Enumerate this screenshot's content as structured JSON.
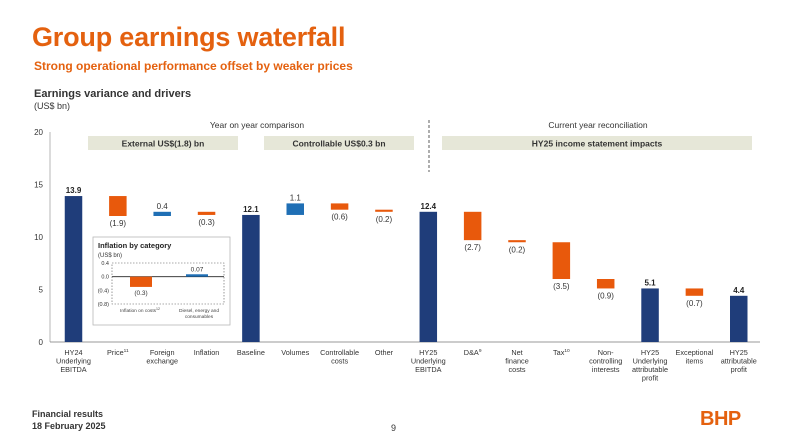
{
  "title": "Group earnings waterfall",
  "subtitle": "Strong operational performance offset by weaker prices",
  "footer": {
    "line1": "Financial results",
    "line2": "18 February 2025",
    "page": "9",
    "logo": "BHP"
  },
  "colors": {
    "accent": "#e4610f",
    "total": "#1f3d7a",
    "increase": "#1f6fb5",
    "decrease": "#e8590c",
    "band": "#e6e7d8"
  },
  "chart_data": {
    "type": "bar",
    "subtype": "waterfall",
    "title": "Earnings variance and drivers",
    "ylabel": "(US$ bn)",
    "ylim": [
      0,
      20
    ],
    "yticks": [
      "0",
      "5",
      "10",
      "15",
      "20"
    ],
    "sections": [
      {
        "label": "Year on year comparison"
      },
      {
        "label": "Current year reconciliation"
      }
    ],
    "bands": [
      {
        "label": "External US$(1.8) bn"
      },
      {
        "label": "Controllable US$0.3 bn"
      },
      {
        "label": "HY25 income statement impacts"
      }
    ],
    "bars": [
      {
        "category": "HY24 Underlying EBITDA",
        "lines": [
          "HY24",
          "Underlying",
          "EBITDA"
        ],
        "sup": "",
        "kind": "total",
        "start": 0,
        "end": 13.9,
        "label": "13.9"
      },
      {
        "category": "Price",
        "lines": [
          "Price"
        ],
        "sup": "11",
        "kind": "delta",
        "start": 13.9,
        "end": 12.0,
        "label": "(1.9)"
      },
      {
        "category": "Foreign exchange",
        "lines": [
          "Foreign",
          "exchange"
        ],
        "sup": "",
        "kind": "delta",
        "start": 12.0,
        "end": 12.4,
        "label": "0.4"
      },
      {
        "category": "Inflation",
        "lines": [
          "Inflation"
        ],
        "sup": "",
        "kind": "delta",
        "start": 12.4,
        "end": 12.1,
        "label": "(0.3)"
      },
      {
        "category": "Baseline",
        "lines": [
          "Baseline"
        ],
        "sup": "",
        "kind": "total",
        "start": 0,
        "end": 12.1,
        "label": "12.1"
      },
      {
        "category": "Volumes",
        "lines": [
          "Volumes"
        ],
        "sup": "",
        "kind": "delta",
        "start": 12.1,
        "end": 13.2,
        "label": "1.1"
      },
      {
        "category": "Controllable costs",
        "lines": [
          "Controllable",
          "costs"
        ],
        "sup": "",
        "kind": "delta",
        "start": 13.2,
        "end": 12.6,
        "label": "(0.6)"
      },
      {
        "category": "Other",
        "lines": [
          "Other"
        ],
        "sup": "",
        "kind": "delta",
        "start": 12.6,
        "end": 12.4,
        "label": "(0.2)"
      },
      {
        "category": "HY25 Underlying EBITDA",
        "lines": [
          "HY25",
          "Underlying",
          "EBITDA"
        ],
        "sup": "",
        "kind": "total",
        "start": 0,
        "end": 12.4,
        "label": "12.4"
      },
      {
        "category": "D&A",
        "lines": [
          "D&A"
        ],
        "sup": "9",
        "kind": "delta",
        "start": 12.4,
        "end": 9.7,
        "label": "(2.7)"
      },
      {
        "category": "Net finance costs",
        "lines": [
          "Net",
          "finance",
          "costs"
        ],
        "sup": "",
        "kind": "delta",
        "start": 9.7,
        "end": 9.5,
        "label": "(0.2)"
      },
      {
        "category": "Tax",
        "lines": [
          "Tax"
        ],
        "sup": "10",
        "kind": "delta",
        "start": 9.5,
        "end": 6.0,
        "label": "(3.5)"
      },
      {
        "category": "Non-controlling interests",
        "lines": [
          "Non-",
          "controlling",
          "interests"
        ],
        "sup": "",
        "kind": "delta",
        "start": 6.0,
        "end": 5.1,
        "label": "(0.9)"
      },
      {
        "category": "HY25 Underlying attributable profit",
        "lines": [
          "HY25",
          "Underlying",
          "attributable",
          "profit"
        ],
        "sup": "",
        "kind": "total",
        "start": 0,
        "end": 5.1,
        "label": "5.1"
      },
      {
        "category": "Exceptional items",
        "lines": [
          "Exceptional",
          "items"
        ],
        "sup": "",
        "kind": "delta",
        "start": 5.1,
        "end": 4.4,
        "label": "(0.7)"
      },
      {
        "category": "HY25 attributable profit",
        "lines": [
          "HY25",
          "attributable",
          "profit"
        ],
        "sup": "",
        "kind": "total",
        "start": 0,
        "end": 4.4,
        "label": "4.4"
      }
    ],
    "inset": {
      "title": "Inflation by category",
      "unit": "(US$ bn)",
      "ylim": [
        -0.8,
        0.4
      ],
      "yticks": [
        "0.4",
        "0.0",
        "(0.4)",
        "(0.8)"
      ],
      "bars": [
        {
          "category": "Inflation on costs",
          "sup": "12",
          "value": -0.3,
          "label": "(0.3)",
          "lines": [
            "Inflation on costs"
          ]
        },
        {
          "category": "Diesel, energy and consumables",
          "sup": "",
          "value": 0.07,
          "label": "0.07",
          "lines": [
            "Diesel, energy and",
            "consumables"
          ]
        }
      ]
    }
  }
}
